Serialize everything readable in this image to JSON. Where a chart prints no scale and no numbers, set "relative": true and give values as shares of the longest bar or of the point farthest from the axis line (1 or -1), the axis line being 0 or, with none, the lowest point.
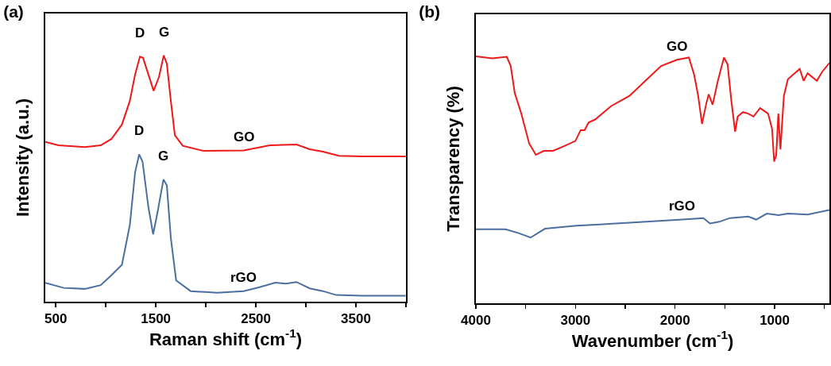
{
  "chart_data": [
    {
      "type": "line",
      "title": "(a)",
      "xlabel": "Raman shift (cm$^{-1}$)",
      "ylabel": "Intensity (a.u.)",
      "relative": true,
      "tick_labels": "x",
      "xlim": [
        395,
        4000
      ],
      "xticks": [
        500,
        {
          "value": 1000,
          "label": null
        },
        1500,
        {
          "value": 2000,
          "label": null
        },
        2500,
        {
          "value": 3000,
          "label": null
        },
        3500,
        {
          "value": 4000,
          "label": null
        }
      ],
      "annotations": [
        {
          "text": "D",
          "x": 1341,
          "y": 0.995
        },
        {
          "text": "G",
          "x": 1579,
          "y": 1.0
        },
        {
          "text": "D",
          "x": 1333,
          "y": 0.598
        },
        {
          "text": "G",
          "x": 1576,
          "y": 0.496
        }
      ],
      "series": [
        {
          "name": "GO",
          "color": "#f01818",
          "x": [
            395,
            526,
            791,
            949,
            1055,
            1161,
            1240,
            1293,
            1341,
            1372,
            1425,
            1478,
            1531,
            1579,
            1610,
            1650,
            1690,
            1769,
            1980,
            2377,
            2641,
            2906,
            3038,
            3170,
            3329,
            3566,
            3997
          ],
          "values": [
            0.649,
            0.635,
            0.628,
            0.635,
            0.66,
            0.719,
            0.815,
            0.923,
            0.995,
            0.99,
            0.923,
            0.856,
            0.912,
            1.0,
            0.966,
            0.815,
            0.676,
            0.633,
            0.612,
            0.614,
            0.635,
            0.638,
            0.619,
            0.609,
            0.592,
            0.59,
            0.59
          ]
        },
        {
          "name": "rGO",
          "color": "#4a6fa0",
          "x": [
            395,
            579,
            791,
            949,
            1055,
            1161,
            1240,
            1293,
            1333,
            1367,
            1425,
            1473,
            1518,
            1576,
            1610,
            1650,
            1703,
            1848,
            2113,
            2377,
            2536,
            2694,
            2800,
            2906,
            3038,
            3170,
            3302,
            3566,
            3997
          ],
          "values": [
            0.077,
            0.056,
            0.052,
            0.067,
            0.107,
            0.15,
            0.311,
            0.526,
            0.598,
            0.569,
            0.386,
            0.274,
            0.365,
            0.496,
            0.472,
            0.258,
            0.086,
            0.043,
            0.036,
            0.043,
            0.059,
            0.077,
            0.073,
            0.08,
            0.054,
            0.043,
            0.027,
            0.024,
            0.024
          ]
        }
      ]
    },
    {
      "type": "line",
      "title": "(b)",
      "xlabel": "Wavenumber (cm$^{-1}$)",
      "ylabel": "Transparency (%)",
      "relative": true,
      "tick_labels": "x",
      "xlim": [
        4000,
        450
      ],
      "xticks": [
        4000,
        {
          "value": 3500,
          "label": null
        },
        3000,
        {
          "value": 2500,
          "label": null
        },
        2000,
        {
          "value": 1500,
          "label": null
        },
        1000,
        {
          "value": 500,
          "label": null
        }
      ],
      "series": [
        {
          "name": "GO",
          "color": "#f01818",
          "x": [
            4000,
            3836,
            3690,
            3650,
            3610,
            3544,
            3465,
            3398,
            3319,
            3226,
            3120,
            3001,
            2948,
            2908,
            2868,
            2802,
            2643,
            2457,
            2298,
            2139,
            1980,
            1861,
            1808,
            1768,
            1729,
            1689,
            1662,
            1623,
            1570,
            1509,
            1472,
            1437,
            1397,
            1371,
            1318,
            1265,
            1212,
            1146,
            1066,
            1026,
            1005,
            984,
            963,
            942,
            907,
            867,
            748,
            709,
            669,
            576,
            523,
            450
          ],
          "values": [
            1.0,
            0.992,
            0.998,
            0.961,
            0.852,
            0.768,
            0.647,
            0.601,
            0.617,
            0.617,
            0.635,
            0.657,
            0.701,
            0.701,
            0.732,
            0.744,
            0.798,
            0.84,
            0.901,
            0.961,
            0.986,
            0.995,
            0.925,
            0.84,
            0.726,
            0.804,
            0.846,
            0.804,
            0.901,
            0.995,
            0.967,
            0.828,
            0.695,
            0.756,
            0.774,
            0.768,
            0.756,
            0.79,
            0.768,
            0.707,
            0.574,
            0.599,
            0.768,
            0.623,
            0.84,
            0.907,
            0.949,
            0.901,
            0.931,
            0.901,
            0.937,
            0.973
          ]
        },
        {
          "name": "rGO",
          "color": "#4a6fa0",
          "x": [
            4000,
            3703,
            3571,
            3451,
            3306,
            2988,
            2457,
            1927,
            1715,
            1649,
            1556,
            1450,
            1265,
            1185,
            1079,
            960,
            867,
            669,
            450
          ],
          "values": [
            0.3,
            0.3,
            0.284,
            0.266,
            0.302,
            0.314,
            0.326,
            0.339,
            0.345,
            0.323,
            0.33,
            0.345,
            0.351,
            0.339,
            0.363,
            0.357,
            0.363,
            0.359,
            0.378
          ]
        }
      ]
    }
  ]
}
